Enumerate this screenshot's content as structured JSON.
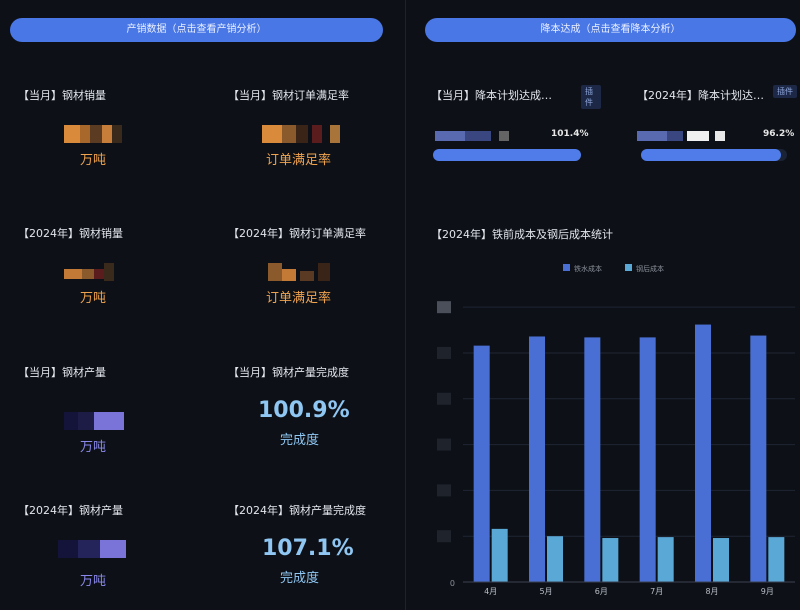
{
  "left_section": {
    "button_label": "产销数据（点击查看产销分析）"
  },
  "right_section": {
    "button_label": "降本达成（点击查看降本分析）"
  },
  "kpis": [
    {
      "title": "【当月】钢材销量",
      "value": "",
      "unit": "万吨",
      "color": "#f0a34e"
    },
    {
      "title": "【当月】钢材订单满足率",
      "value": "",
      "unit": "订单满足率",
      "color": "#f0a34e"
    },
    {
      "title": "【2024年】钢材销量",
      "value": "",
      "unit": "万吨",
      "color": "#f0a34e"
    },
    {
      "title": "【2024年】钢材订单满足率",
      "value": "",
      "unit": "订单满足率",
      "color": "#f0a34e"
    },
    {
      "title": "【当月】钢材产量",
      "value": "",
      "unit": "万吨",
      "color": "#8a88ea"
    },
    {
      "title": "【当月】钢材产量完成度",
      "value": "100.9%",
      "unit": "完成度",
      "color": "#8fc6f2"
    },
    {
      "title": "【2024年】钢材产量",
      "value": "",
      "unit": "万吨",
      "color": "#8a88ea"
    },
    {
      "title": "【2024年】钢材产量完成度",
      "value": "107.1%",
      "unit": "完成度",
      "color": "#8fc6f2"
    }
  ],
  "rate_cards": [
    {
      "title": "【当月】降本计划达成…",
      "tag": "插件",
      "value": "101.4%",
      "progress": 1.0
    },
    {
      "title": "【2024年】降本计划达…",
      "tag": "插件",
      "value": "96.2%",
      "progress": 0.962
    }
  ],
  "chart_data": {
    "type": "bar",
    "title": "【2024年】铁前成本及钢后成本统计",
    "categories": [
      "4月",
      "5月",
      "6月",
      "7月",
      "8月",
      "9月"
    ],
    "series": [
      {
        "name": "铁水成本",
        "color": "#4a6fd4",
        "values": [
          258,
          268,
          267,
          267,
          281,
          269
        ]
      },
      {
        "name": "钢后成本",
        "color": "#5aa8d6",
        "values": [
          58,
          50,
          48,
          49,
          48,
          49
        ]
      }
    ],
    "ylim": [
      0,
      310
    ],
    "y_tick_labels": [
      "0"
    ],
    "grid": true,
    "legend": "top-center"
  }
}
